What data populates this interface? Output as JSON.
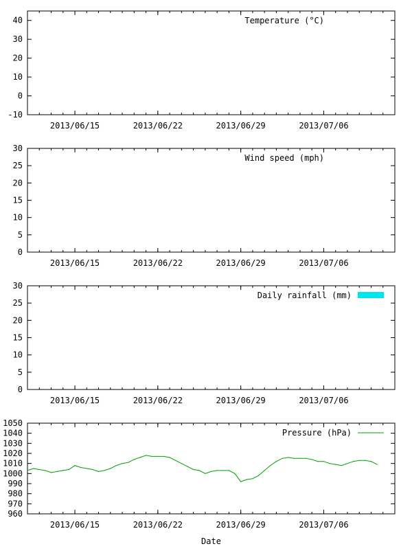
{
  "chart_data": [
    {
      "type": "line",
      "legend": "Temperature (°C)",
      "legend_placement": "top-right",
      "ylim": [
        -10,
        45
      ],
      "yticks": [
        -10,
        0,
        10,
        20,
        30,
        40
      ],
      "xlim": [
        "2013/06/11",
        "2013/07/12"
      ],
      "xticks": [
        "2013/06/15",
        "2013/06/22",
        "2013/06/29",
        "2013/07/06"
      ],
      "series": []
    },
    {
      "type": "line",
      "legend": "Wind speed (mph)",
      "legend_placement": "top-right",
      "ylim": [
        0,
        30
      ],
      "yticks": [
        0,
        5,
        10,
        15,
        20,
        25,
        30
      ],
      "xlim": [
        "2013/06/11",
        "2013/07/12"
      ],
      "xticks": [
        "2013/06/15",
        "2013/06/22",
        "2013/06/29",
        "2013/07/06"
      ],
      "series": []
    },
    {
      "type": "bar",
      "legend": "Daily rainfall (mm)",
      "legend_placement": "top-right",
      "legend_color": "#00e5ee",
      "ylim": [
        0,
        30
      ],
      "yticks": [
        0,
        5,
        10,
        15,
        20,
        25,
        30
      ],
      "xlim": [
        "2013/06/11",
        "2013/07/12"
      ],
      "xticks": [
        "2013/06/15",
        "2013/06/22",
        "2013/06/29",
        "2013/07/06"
      ],
      "series": []
    },
    {
      "type": "line",
      "legend": "Pressure (hPa)",
      "legend_placement": "top-right",
      "xlabel": "Date",
      "ylim": [
        960,
        1050
      ],
      "yticks": [
        960,
        970,
        980,
        990,
        1000,
        1010,
        1020,
        1030,
        1040,
        1050
      ],
      "xlim": [
        "2013/06/11",
        "2013/07/12"
      ],
      "xticks": [
        "2013/06/15",
        "2013/06/22",
        "2013/06/29",
        "2013/07/06"
      ],
      "series": [
        {
          "color": "#00a000",
          "points": [
            [
              "2013/06/11 00:00",
              1003
            ],
            [
              "2013/06/11 12:00",
              1005
            ],
            [
              "2013/06/12 00:00",
              1004
            ],
            [
              "2013/06/12 12:00",
              1003
            ],
            [
              "2013/06/13 00:00",
              1001
            ],
            [
              "2013/06/13 12:00",
              1002
            ],
            [
              "2013/06/14 00:00",
              1003
            ],
            [
              "2013/06/14 12:00",
              1004
            ],
            [
              "2013/06/15 00:00",
              1008
            ],
            [
              "2013/06/15 12:00",
              1006
            ],
            [
              "2013/06/16 00:00",
              1005
            ],
            [
              "2013/06/16 12:00",
              1004
            ],
            [
              "2013/06/17 00:00",
              1002
            ],
            [
              "2013/06/17 12:00",
              1003
            ],
            [
              "2013/06/18 00:00",
              1005
            ],
            [
              "2013/06/18 12:00",
              1008
            ],
            [
              "2013/06/19 00:00",
              1010
            ],
            [
              "2013/06/19 12:00",
              1011
            ],
            [
              "2013/06/20 00:00",
              1014
            ],
            [
              "2013/06/20 12:00",
              1016
            ],
            [
              "2013/06/21 00:00",
              1018
            ],
            [
              "2013/06/21 12:00",
              1017
            ],
            [
              "2013/06/22 00:00",
              1017
            ],
            [
              "2013/06/22 12:00",
              1017
            ],
            [
              "2013/06/23 00:00",
              1016
            ],
            [
              "2013/06/23 12:00",
              1013
            ],
            [
              "2013/06/24 00:00",
              1010
            ],
            [
              "2013/06/24 12:00",
              1007
            ],
            [
              "2013/06/25 00:00",
              1004
            ],
            [
              "2013/06/25 12:00",
              1003
            ],
            [
              "2013/06/26 00:00",
              1000
            ],
            [
              "2013/06/26 12:00",
              1002
            ],
            [
              "2013/06/27 00:00",
              1003
            ],
            [
              "2013/06/27 12:00",
              1003
            ],
            [
              "2013/06/28 00:00",
              1003
            ],
            [
              "2013/06/28 12:00",
              1000
            ],
            [
              "2013/06/29 00:00",
              992
            ],
            [
              "2013/06/29 12:00",
              994
            ],
            [
              "2013/06/30 00:00",
              995
            ],
            [
              "2013/06/30 12:00",
              998
            ],
            [
              "2013/07/01 00:00",
              1003
            ],
            [
              "2013/07/01 12:00",
              1008
            ],
            [
              "2013/07/02 00:00",
              1012
            ],
            [
              "2013/07/02 12:00",
              1015
            ],
            [
              "2013/07/03 00:00",
              1016
            ],
            [
              "2013/07/03 12:00",
              1015
            ],
            [
              "2013/07/04 00:00",
              1015
            ],
            [
              "2013/07/04 12:00",
              1015
            ],
            [
              "2013/07/05 00:00",
              1014
            ],
            [
              "2013/07/05 12:00",
              1012
            ],
            [
              "2013/07/06 00:00",
              1012
            ],
            [
              "2013/07/06 12:00",
              1010
            ],
            [
              "2013/07/07 00:00",
              1009
            ],
            [
              "2013/07/07 12:00",
              1008
            ],
            [
              "2013/07/08 00:00",
              1010
            ],
            [
              "2013/07/08 12:00",
              1012
            ],
            [
              "2013/07/09 00:00",
              1013
            ],
            [
              "2013/07/09 12:00",
              1013
            ],
            [
              "2013/07/10 00:00",
              1012
            ],
            [
              "2013/07/10 12:00",
              1009
            ]
          ]
        }
      ]
    }
  ]
}
